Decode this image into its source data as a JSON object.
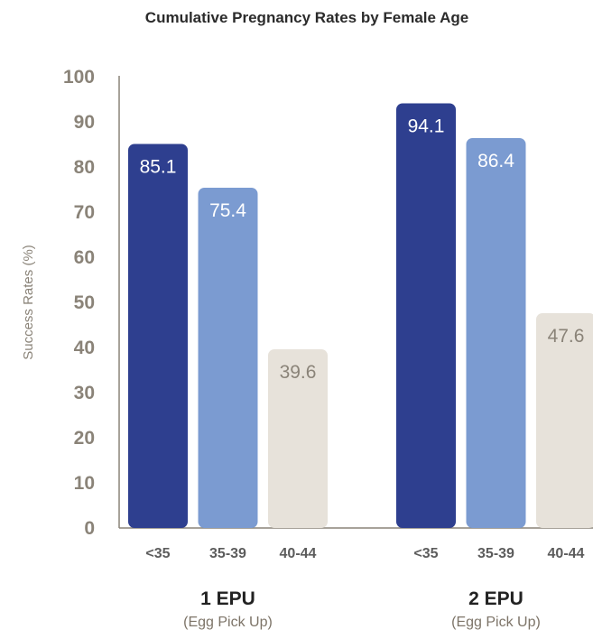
{
  "chart_data": {
    "type": "bar",
    "title": "Cumulative Pregnancy Rates by Female Age",
    "ylabel": "Success Rates (%)",
    "xlabel": "",
    "ylim": [
      0,
      100
    ],
    "yticks": [
      0,
      10,
      20,
      30,
      40,
      50,
      60,
      70,
      80,
      90,
      100
    ],
    "grid": false,
    "legend": "none",
    "groups": [
      {
        "label": "1 EPU",
        "sublabel": "(Egg Pick Up)",
        "categories": [
          "<35",
          "35-39",
          "40-44"
        ],
        "values": [
          85.1,
          75.4,
          39.6
        ],
        "value_labels": [
          "85.1",
          "75.4",
          "39.6"
        ]
      },
      {
        "label": "2 EPU",
        "sublabel": "(Egg Pick Up)",
        "categories": [
          "<35",
          "35-39",
          "40-44"
        ],
        "values": [
          94.1,
          86.4,
          47.6
        ],
        "value_labels": [
          "94.1",
          "86.4",
          "47.6"
        ]
      }
    ],
    "colors": [
      "#2e3f8f",
      "#7b9bd1",
      "#e7e2da"
    ],
    "label_colors": [
      "#ffffff",
      "#ffffff",
      "#8a8378"
    ]
  }
}
